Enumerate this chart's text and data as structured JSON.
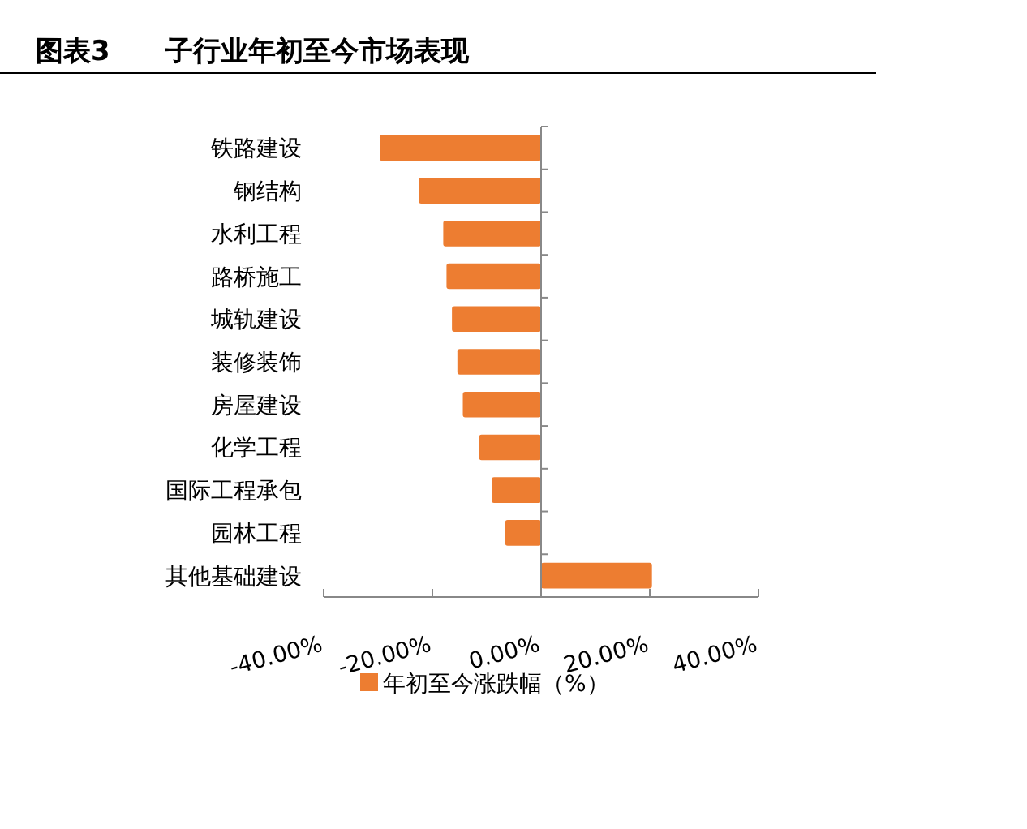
{
  "chart_data": {
    "type": "bar",
    "orientation": "horizontal",
    "title": "图表3　　子行业年初至今市场表现",
    "categories": [
      "铁路建设",
      "钢结构",
      "水利工程",
      "路桥施工",
      "城轨建设",
      "装修装饰",
      "房屋建设",
      "化学工程",
      "国际工程承包",
      "园林工程",
      "其他基础建设"
    ],
    "series": [
      {
        "name": "年初至今涨跌幅（%）",
        "color": "#ed7d31",
        "values": [
          -29.7,
          -22.5,
          -18.0,
          -17.4,
          -16.4,
          -15.4,
          -14.4,
          -11.4,
          -9.1,
          -6.6,
          20.4
        ]
      }
    ],
    "xlim": [
      -40,
      40
    ],
    "xticks": [
      {
        "value": -40,
        "label": "-40.00%"
      },
      {
        "value": -20,
        "label": "-20.00%"
      },
      {
        "value": 0,
        "label": "0.00%"
      },
      {
        "value": 20,
        "label": "20.00%"
      },
      {
        "value": 40,
        "label": "40.00%"
      }
    ],
    "legend": "bottom"
  }
}
